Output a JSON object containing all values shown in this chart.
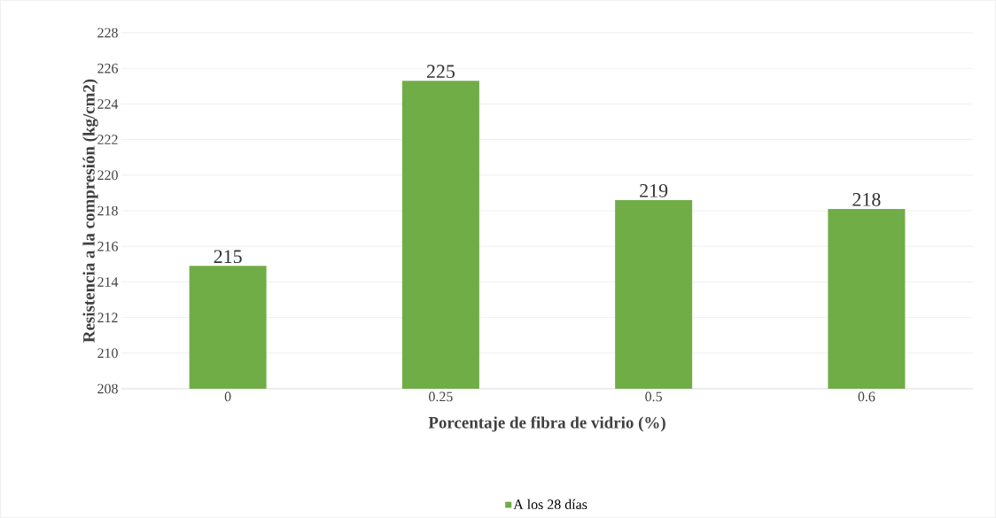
{
  "chart_data": {
    "type": "bar",
    "xlabel": "Porcentaje de fibra de vidrio (%)",
    "ylabel": "Resistencia a la compresión (kg/cm2)",
    "categories": [
      "0",
      "0.25",
      "0.5",
      "0.6"
    ],
    "series": [
      {
        "name": "A los 28 días",
        "color": "#70ad47",
        "values": [
          214.9,
          225.3,
          218.6,
          218.1
        ],
        "value_labels": [
          "215",
          "225",
          "219",
          "218"
        ]
      }
    ],
    "ylim": [
      208,
      228
    ],
    "yticks": [
      208,
      210,
      212,
      214,
      216,
      218,
      220,
      222,
      224,
      226,
      228
    ],
    "grid": "y",
    "legend": "bottom"
  }
}
